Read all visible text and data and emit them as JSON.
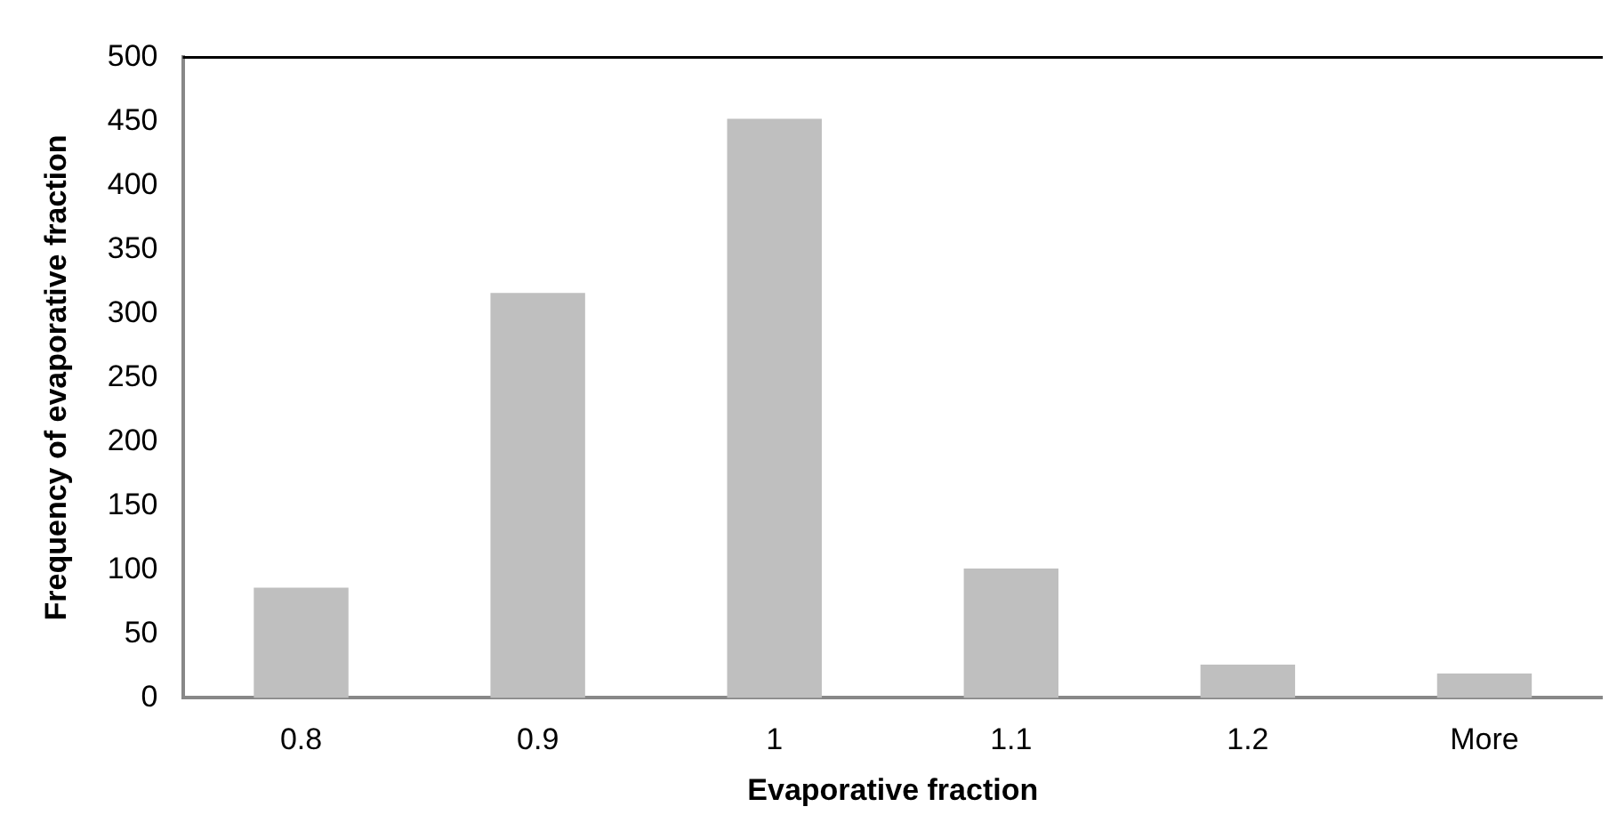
{
  "chart_data": {
    "type": "bar",
    "xlabel": "Evaporative fraction",
    "ylabel": "Frequency of evaporative fraction",
    "categories": [
      "0.8",
      "0.9",
      "1",
      "1.1",
      "1.2",
      "More"
    ],
    "values": [
      86,
      316,
      452,
      101,
      26,
      19
    ],
    "color": "#bfbfbf",
    "ylim": [
      0,
      500
    ],
    "yticks": [
      0,
      50,
      100,
      150,
      200,
      250,
      300,
      350,
      400,
      450,
      500
    ],
    "grid": false,
    "legend": false
  }
}
